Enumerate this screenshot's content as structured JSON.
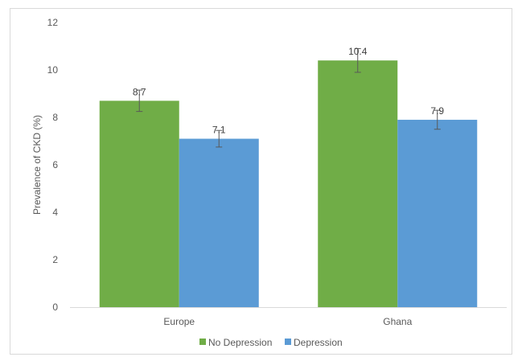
{
  "chart_data": {
    "type": "bar",
    "categories": [
      "Europe",
      "Ghana"
    ],
    "series": [
      {
        "name": "No Depression",
        "color": "#70ad47",
        "values": [
          8.7,
          10.4
        ],
        "error": [
          0.45,
          0.5
        ],
        "labels": [
          "8.7",
          "10.4"
        ]
      },
      {
        "name": "Depression",
        "color": "#5b9bd5",
        "values": [
          7.1,
          7.9
        ],
        "error": [
          0.35,
          0.4
        ],
        "labels": [
          "7.1",
          "7.9"
        ]
      }
    ],
    "xlabel": "",
    "ylabel": "Prevalence of CKD (%)",
    "ylim": [
      0,
      12
    ],
    "yticks": [
      0,
      2,
      4,
      6,
      8,
      10,
      12
    ],
    "ytick_labels": [
      "0",
      "2",
      "4",
      "6",
      "8",
      "10",
      "12"
    ],
    "grid": false,
    "legend_position": "bottom",
    "axis_color": "#d9d9d9",
    "errorbar_color": "#595959",
    "border_color": "#d9d9d9"
  }
}
